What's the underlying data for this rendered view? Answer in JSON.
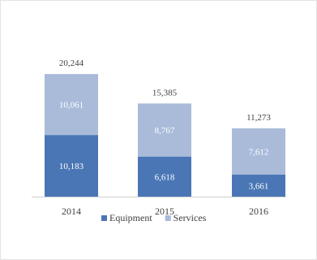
{
  "chart_data": {
    "type": "bar",
    "stacked": true,
    "categories": [
      "2014",
      "2015",
      "2016"
    ],
    "series": [
      {
        "name": "Equipment",
        "values": [
          10183,
          6618,
          3661
        ],
        "color": "#4a76b5"
      },
      {
        "name": "Services",
        "values": [
          10061,
          8767,
          7612
        ],
        "color": "#a9bbd9"
      }
    ],
    "segment_labels": [
      [
        "10,183",
        "6,618",
        "3,661"
      ],
      [
        "10,061",
        "8,767",
        "7,612"
      ]
    ],
    "totals": [
      20244,
      15385,
      11273
    ],
    "total_labels": [
      "20,244",
      "15,385",
      "11,273"
    ],
    "ylim": [
      0,
      25500
    ],
    "grid": false,
    "legend_position": "bottom"
  }
}
